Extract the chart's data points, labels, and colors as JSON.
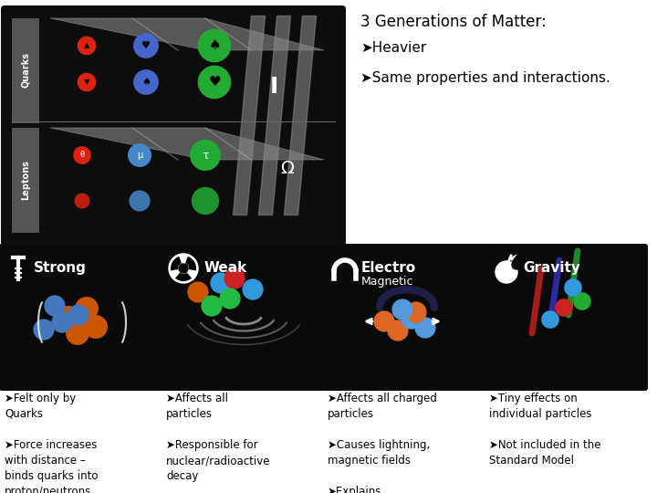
{
  "title": "3 Generations of Matter:",
  "top_right_text1": "➤Heavier",
  "top_right_text2": "➤Same properties and interactions.",
  "forces": [
    "Strong",
    "Weak",
    "Electro",
    "Gravity"
  ],
  "force_sub": [
    "",
    "",
    "Magnetic",
    ""
  ],
  "bg_color": "#ffffff",
  "box_bg": "#0a0a0a",
  "col1_text": "➤Felt only by\nQuarks\n\n➤Force increases\nwith distance –\nbinds quarks into\nproton/neutrons",
  "col2_text": "➤Affects all\nparticles\n\n➤Responsible for\nnuclear/radioactive\ndecay\n\n➤Massive bosons?",
  "col3_text": "➤Affects all charged\nparticles\n\n➤Causes lightning,\nmagnetic fields\n\n➤Explains\nChemistry???",
  "col4_text": "➤Tiny effects on\nindividual particles\n\n➤Not included in the\nStandard Model"
}
